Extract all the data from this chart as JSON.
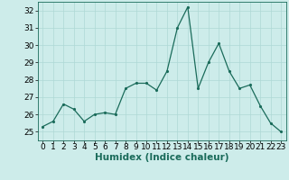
{
  "x": [
    0,
    1,
    2,
    3,
    4,
    5,
    6,
    7,
    8,
    9,
    10,
    11,
    12,
    13,
    14,
    15,
    16,
    17,
    18,
    19,
    20,
    21,
    22,
    23
  ],
  "y": [
    25.3,
    25.6,
    26.6,
    26.3,
    25.6,
    26.0,
    26.1,
    26.0,
    27.5,
    27.8,
    27.8,
    27.4,
    28.5,
    31.0,
    32.2,
    27.5,
    29.0,
    30.1,
    28.5,
    27.5,
    27.7,
    26.5,
    25.5,
    25.0
  ],
  "line_color": "#1a6b5a",
  "marker_color": "#1a6b5a",
  "bg_color": "#cdecea",
  "grid_color": "#aed8d5",
  "xlabel": "Humidex (Indice chaleur)",
  "ylim": [
    24.5,
    32.5
  ],
  "yticks": [
    25,
    26,
    27,
    28,
    29,
    30,
    31,
    32
  ],
  "xticks": [
    0,
    1,
    2,
    3,
    4,
    5,
    6,
    7,
    8,
    9,
    10,
    11,
    12,
    13,
    14,
    15,
    16,
    17,
    18,
    19,
    20,
    21,
    22,
    23
  ],
  "xlabel_fontsize": 7.5,
  "tick_fontsize": 6.5
}
